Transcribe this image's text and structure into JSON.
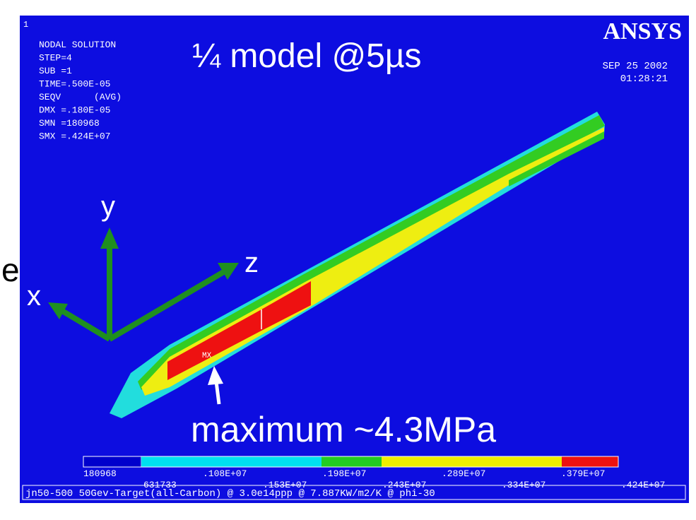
{
  "frame_number": "1",
  "info": [
    "NODAL SOLUTION",
    "STEP=4",
    "SUB =1",
    "TIME=.500E-05",
    "SEQV      (AVG)",
    "DMX =.180E-05",
    "SMN =180968",
    "SMX =.424E+07"
  ],
  "title": "¼ model  @5µs",
  "logo": "ANSYS",
  "date": "SEP 25 2002",
  "time": "01:28:21",
  "axes": {
    "y": "y",
    "z": "z",
    "x": "x"
  },
  "edge_text": "e",
  "max_marker": "MX",
  "annotation": "maximum ~4.3MPa",
  "legend": {
    "top_labels": [
      "180968",
      ".108E+07",
      ".198E+07",
      ".289E+07",
      ".379E+07"
    ],
    "bottom_labels": [
      "631733",
      ".153E+07",
      ".243E+07",
      ".334E+07",
      ".424E+07"
    ]
  },
  "footer": "jn50-500 50Gev-Target(all-Carbon) @ 3.0e14ppp @ 7.887KW/m2/K @ phi-30"
}
